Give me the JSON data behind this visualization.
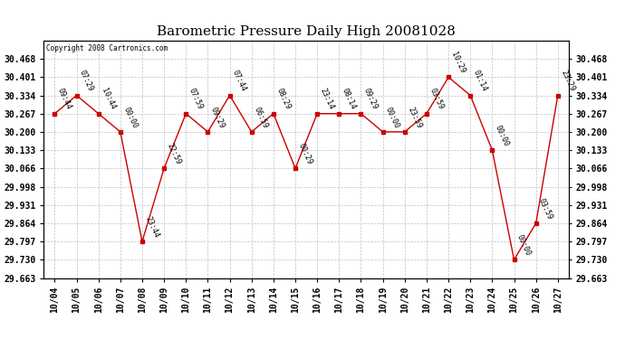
{
  "title": "Barometric Pressure Daily High 20081028",
  "copyright": "Copyright 2008 Cartronics.com",
  "x_labels": [
    "10/04",
    "10/05",
    "10/06",
    "10/07",
    "10/08",
    "10/09",
    "10/10",
    "10/11",
    "10/12",
    "10/13",
    "10/14",
    "10/15",
    "10/16",
    "10/17",
    "10/18",
    "10/19",
    "10/20",
    "10/21",
    "10/22",
    "10/23",
    "10/24",
    "10/25",
    "10/26",
    "10/27"
  ],
  "x_values": [
    0,
    1,
    2,
    3,
    4,
    5,
    6,
    7,
    8,
    9,
    10,
    11,
    12,
    13,
    14,
    15,
    16,
    17,
    18,
    19,
    20,
    21,
    22,
    23
  ],
  "y_values": [
    30.267,
    30.334,
    30.267,
    30.2,
    29.797,
    30.066,
    30.267,
    30.2,
    30.334,
    30.2,
    30.267,
    30.066,
    30.267,
    30.267,
    30.267,
    30.2,
    30.2,
    30.267,
    30.401,
    30.334,
    30.133,
    29.73,
    29.864,
    30.334
  ],
  "point_labels": [
    "09:44",
    "07:29",
    "10:44",
    "00:00",
    "23:44",
    "22:59",
    "07:59",
    "09:29",
    "07:44",
    "06:59",
    "08:29",
    "00:29",
    "23:14",
    "08:14",
    "09:29",
    "00:00",
    "23:59",
    "03:59",
    "10:29",
    "01:14",
    "00:00",
    "00:00",
    "03:59",
    "23:29"
  ],
  "ylim_min": 29.663,
  "ylim_max": 30.535,
  "y_ticks": [
    29.663,
    29.73,
    29.797,
    29.864,
    29.931,
    29.998,
    30.066,
    30.133,
    30.2,
    30.267,
    30.334,
    30.401,
    30.468
  ],
  "line_color": "#cc0000",
  "marker_color": "#cc0000",
  "bg_color": "#ffffff",
  "grid_color": "#c0c0c0",
  "title_fontsize": 11,
  "label_fontsize": 6.5,
  "point_label_fontsize": 6.0,
  "tick_label_fontsize": 7.0
}
